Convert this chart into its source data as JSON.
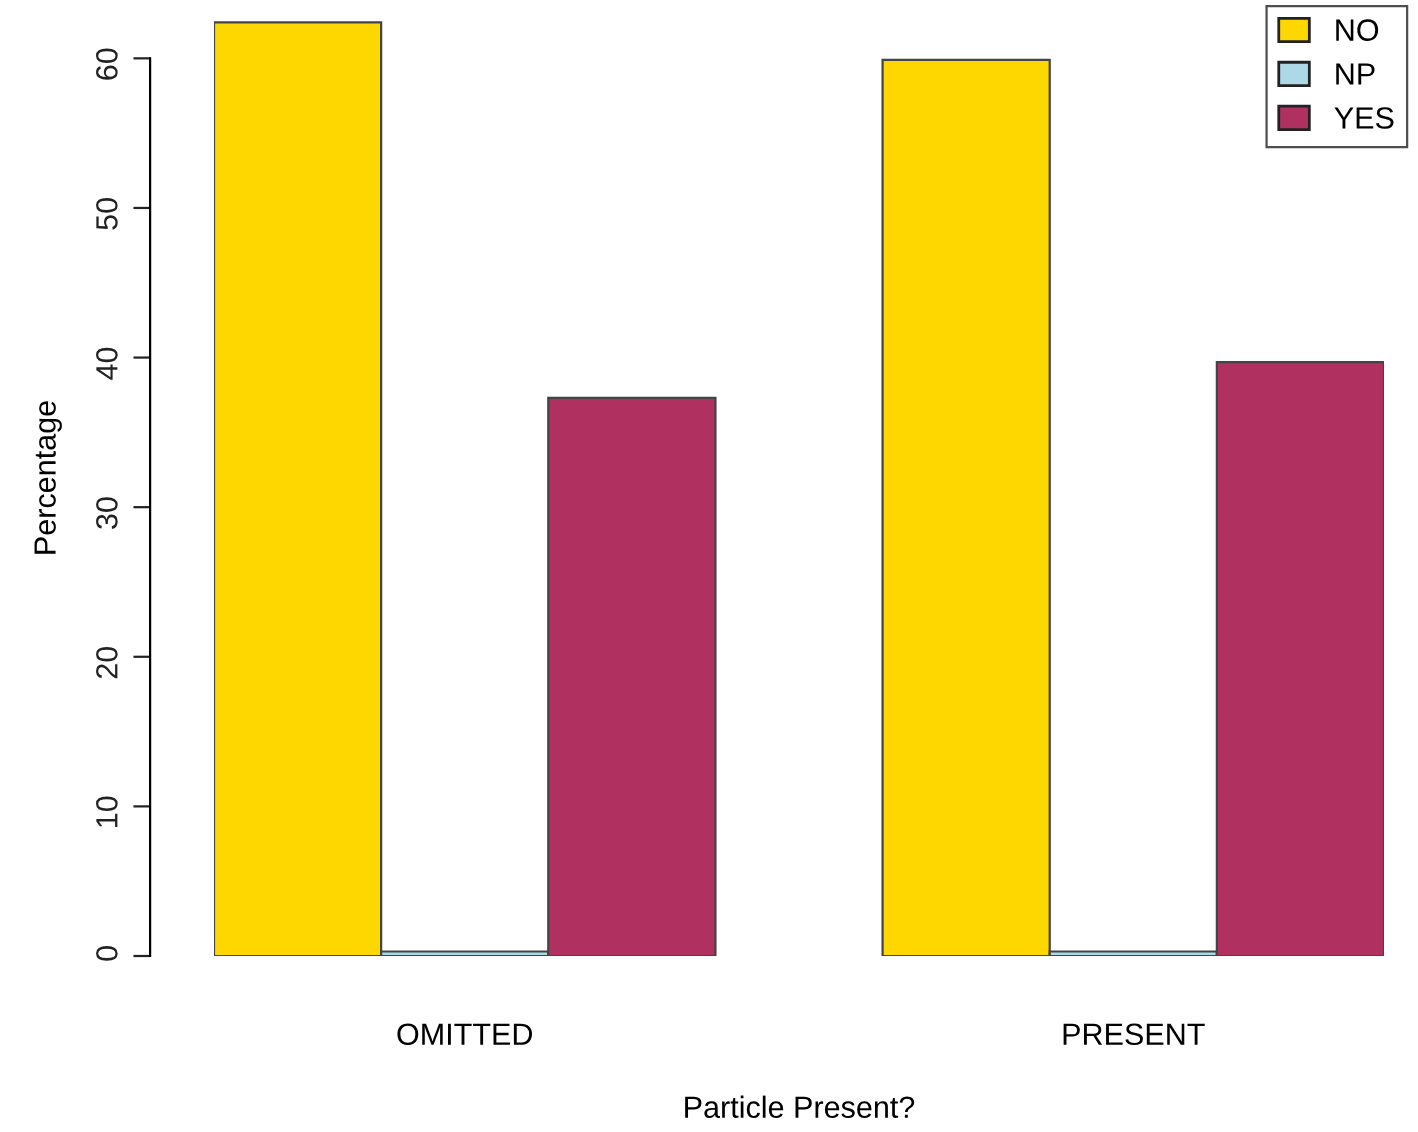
{
  "chart_data": {
    "type": "bar",
    "xlabel": "Particle Present?",
    "ylabel": "Percentage",
    "categories": [
      "OMITTED",
      "PRESENT"
    ],
    "series": [
      {
        "name": "NO",
        "color": "#ffd700",
        "values": [
          62.4,
          59.9
        ]
      },
      {
        "name": "NP",
        "color": "#add8e6",
        "values": [
          0.3,
          0.3
        ]
      },
      {
        "name": "YES",
        "color": "#b03060",
        "values": [
          37.3,
          39.7
        ]
      }
    ],
    "ylim": [
      0,
      63.9
    ],
    "yticks": [
      0,
      10,
      20,
      30,
      40,
      50,
      60
    ],
    "grid": false,
    "legend": "top right"
  }
}
